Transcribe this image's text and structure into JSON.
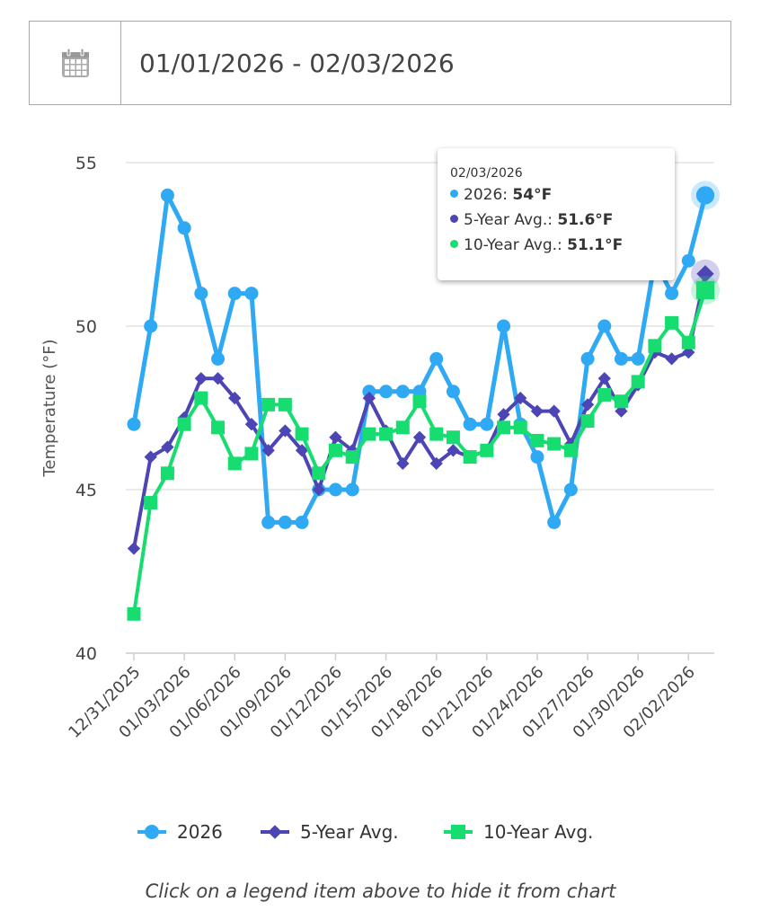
{
  "date_picker": {
    "icon": "calendar-icon",
    "range": "01/01/2026 - 02/03/2026"
  },
  "caption": "Click on a legend item above to hide it from chart",
  "tooltip": {
    "date": "02/03/2026",
    "rows": [
      {
        "label": "2026: ",
        "value": "54°F",
        "color": "#2fa9f3"
      },
      {
        "label": "5-Year Avg.: ",
        "value": "51.6°F",
        "color": "#4d45b5"
      },
      {
        "label": "10-Year Avg.: ",
        "value": "51.1°F",
        "color": "#17dc70"
      }
    ]
  },
  "chart_data": {
    "type": "line",
    "title": "",
    "xlabel": "",
    "ylabel": "Temperature (°F)",
    "ylim": [
      40,
      55
    ],
    "yticks": [
      40,
      45,
      50,
      55
    ],
    "grid": true,
    "legend_position": "bottom",
    "x": [
      "12/31/2025",
      "01/01/2026",
      "01/02/2026",
      "01/03/2026",
      "01/04/2026",
      "01/05/2026",
      "01/06/2026",
      "01/07/2026",
      "01/08/2026",
      "01/09/2026",
      "01/10/2026",
      "01/11/2026",
      "01/12/2026",
      "01/13/2026",
      "01/14/2026",
      "01/15/2026",
      "01/16/2026",
      "01/17/2026",
      "01/18/2026",
      "01/19/2026",
      "01/20/2026",
      "01/21/2026",
      "01/22/2026",
      "01/23/2026",
      "01/24/2026",
      "01/25/2026",
      "01/26/2026",
      "01/27/2026",
      "01/28/2026",
      "01/29/2026",
      "01/30/2026",
      "01/31/2026",
      "02/01/2026",
      "02/02/2026",
      "02/03/2026"
    ],
    "xtick_labels": [
      "12/31/2025",
      "01/03/2026",
      "01/06/2026",
      "01/09/2026",
      "01/12/2026",
      "01/15/2026",
      "01/18/2026",
      "01/21/2026",
      "01/24/2026",
      "01/27/2026",
      "01/30/2026",
      "02/02/2026"
    ],
    "series": [
      {
        "name": "2026",
        "color": "#2fa9f3",
        "marker": "circle",
        "values": [
          47,
          50,
          54,
          53,
          51,
          49,
          51,
          51,
          44,
          44,
          44,
          45,
          45,
          45,
          48,
          48,
          48,
          48,
          49,
          48,
          47,
          47,
          50,
          47,
          46,
          44,
          45,
          49,
          50,
          49,
          49,
          52,
          51,
          52,
          54
        ]
      },
      {
        "name": "5-Year Avg.",
        "color": "#4d45b5",
        "marker": "diamond",
        "values": [
          43.2,
          46.0,
          46.3,
          47.2,
          48.4,
          48.4,
          47.8,
          47.0,
          46.2,
          46.8,
          46.2,
          45.0,
          46.6,
          46.2,
          47.8,
          46.8,
          45.8,
          46.6,
          45.8,
          46.2,
          46.0,
          46.2,
          47.3,
          47.8,
          47.4,
          47.4,
          46.4,
          47.6,
          48.4,
          47.4,
          48.2,
          49.2,
          49.0,
          49.2,
          51.6
        ]
      },
      {
        "name": "10-Year Avg.",
        "color": "#17dc70",
        "marker": "square",
        "values": [
          41.2,
          44.6,
          45.5,
          47.0,
          47.8,
          46.9,
          45.8,
          46.1,
          47.6,
          47.6,
          46.7,
          45.5,
          46.2,
          46.0,
          46.7,
          46.7,
          46.9,
          47.7,
          46.7,
          46.6,
          46.0,
          46.2,
          46.9,
          46.9,
          46.5,
          46.4,
          46.2,
          47.1,
          47.9,
          47.7,
          48.3,
          49.4,
          50.1,
          49.5,
          51.1
        ]
      }
    ]
  }
}
